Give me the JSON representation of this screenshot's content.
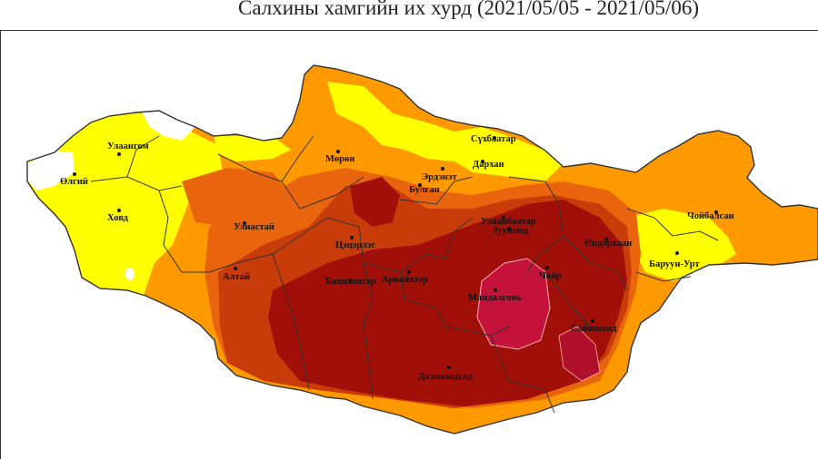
{
  "title": "Салхины хамгийн их хурд (2021/05/05 - 2021/05/06)",
  "colors": {
    "yellow": "#ffff00",
    "light_orange": "#ff9900",
    "orange": "#e8650d",
    "red_orange": "#c83c0a",
    "dark_red": "#a01008",
    "crimson": "#c4123a",
    "boundary": "#333333"
  },
  "cities": [
    {
      "id": "ulaangom",
      "label": "Улаангом"
    },
    {
      "id": "olgii",
      "label": "Өлгий"
    },
    {
      "id": "khovd",
      "label": "Ховд"
    },
    {
      "id": "moron",
      "label": "Мөрөн"
    },
    {
      "id": "sukhbaatar",
      "label": "Сүхбаатар"
    },
    {
      "id": "darkhan",
      "label": "Дархан"
    },
    {
      "id": "erdenet",
      "label": "Эрдэнэт"
    },
    {
      "id": "bulgan",
      "label": "Булган"
    },
    {
      "id": "uliastai",
      "label": "Улиастай"
    },
    {
      "id": "tsetserleg",
      "label": "Цэцэрлэг"
    },
    {
      "id": "ulaanbaatar",
      "label": "Улаанбаатар"
    },
    {
      "id": "zuunmod",
      "label": "Зуунмод"
    },
    {
      "id": "choibalsan",
      "label": "Чойбалсан"
    },
    {
      "id": "undurkhaan",
      "label": "Өндөрхаан"
    },
    {
      "id": "baruun_urt",
      "label": "Баруун-Урт"
    },
    {
      "id": "altai",
      "label": "Алтай"
    },
    {
      "id": "bayankhongor",
      "label": "Баянхонгор"
    },
    {
      "id": "arvaikheer",
      "label": "Арвайхээр"
    },
    {
      "id": "choir",
      "label": "Чойр"
    },
    {
      "id": "mandalgovi",
      "label": "Мандалговь"
    },
    {
      "id": "sainshand",
      "label": "Сайншанд"
    },
    {
      "id": "dalanzadgad",
      "label": "Даланзадгад"
    }
  ]
}
